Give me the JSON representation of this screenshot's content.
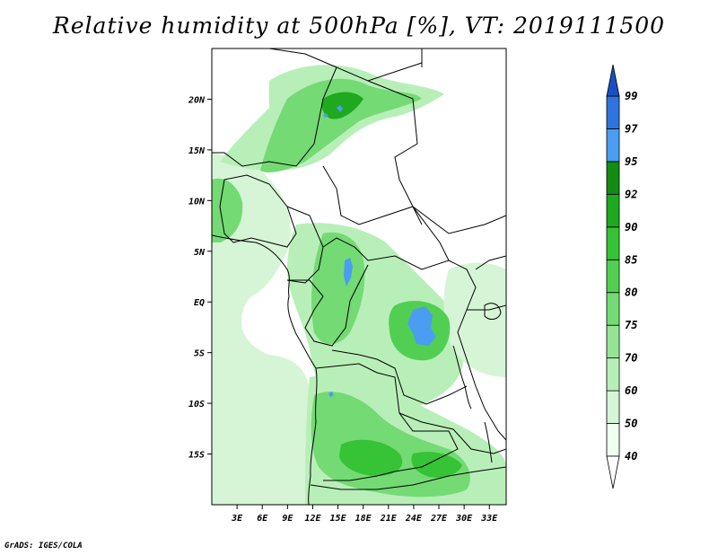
{
  "title": "Relative humidity at 500hPa [%], VT: 2019111500",
  "footer": "GrADS: IGES/COLA",
  "map": {
    "lon_labels": [
      "3E",
      "6E",
      "9E",
      "12E",
      "15E",
      "18E",
      "21E",
      "24E",
      "27E",
      "30E",
      "33E"
    ],
    "lon_values": [
      3,
      6,
      9,
      12,
      15,
      18,
      21,
      24,
      27,
      30,
      33
    ],
    "lat_labels": [
      "20N",
      "15N",
      "10N",
      "5N",
      "EQ",
      "5S",
      "10S",
      "15S"
    ],
    "lat_values": [
      20,
      15,
      10,
      5,
      0,
      -5,
      -10,
      -15
    ],
    "lon_range": [
      0,
      35
    ],
    "lat_range": [
      -20,
      25
    ]
  },
  "colorbar": {
    "labels": [
      "99",
      "97",
      "95",
      "92",
      "90",
      "85",
      "80",
      "75",
      "70",
      "60",
      "50",
      "40"
    ],
    "levels": [
      40,
      50,
      60,
      70,
      75,
      80,
      85,
      90,
      92,
      95,
      97,
      99
    ],
    "colors": [
      "#f0fff0",
      "#d6f5d6",
      "#b8efb8",
      "#96e596",
      "#74da74",
      "#52cf52",
      "#36c336",
      "#1ea91e",
      "#128c12",
      "#4a9df0",
      "#2f74de",
      "#1a50c2"
    ],
    "overflow_low_color": "#ffffff",
    "overflow_high_color": "#1a50c2"
  }
}
